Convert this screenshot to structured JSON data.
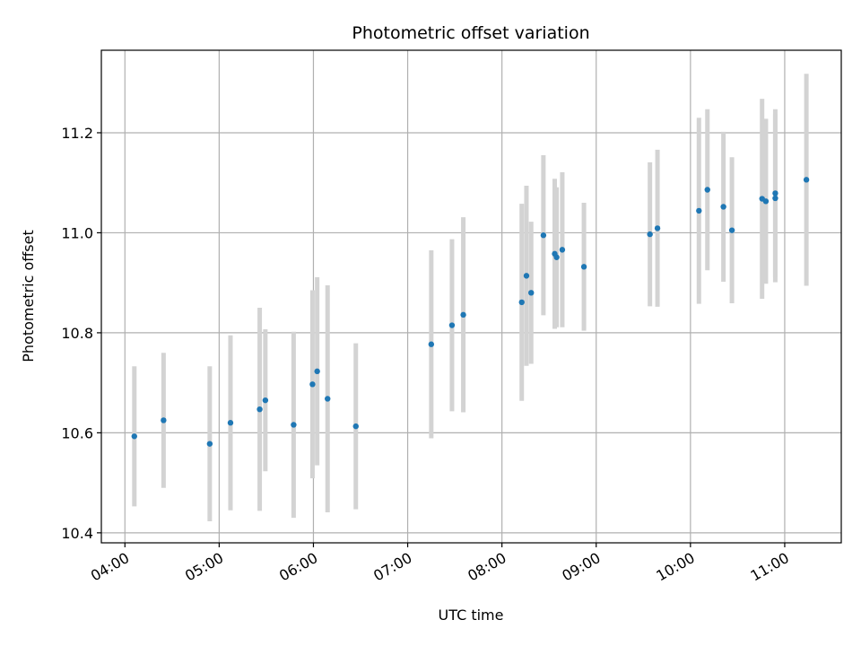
{
  "chart_data": {
    "type": "scatter",
    "title": "Photometric offset variation",
    "xlabel": "UTC time",
    "ylabel": "Photometric offset",
    "xlim_hours": [
      3.75,
      11.6
    ],
    "ylim": [
      10.38,
      11.365
    ],
    "grid": true,
    "x_ticks": [
      {
        "value": 4,
        "label": "04:00"
      },
      {
        "value": 5,
        "label": "05:00"
      },
      {
        "value": 6,
        "label": "06:00"
      },
      {
        "value": 7,
        "label": "07:00"
      },
      {
        "value": 8,
        "label": "08:00"
      },
      {
        "value": 9,
        "label": "09:00"
      },
      {
        "value": 10,
        "label": "10:00"
      },
      {
        "value": 11,
        "label": "11:00"
      }
    ],
    "y_ticks": [
      {
        "value": 10.4,
        "label": "10.4"
      },
      {
        "value": 10.6,
        "label": "10.6"
      },
      {
        "value": 10.8,
        "label": "10.8"
      },
      {
        "value": 11.0,
        "label": "11.0"
      },
      {
        "value": 11.2,
        "label": "11.2"
      }
    ],
    "colors": {
      "points": "#1f77b4",
      "errorbars": "#d3d3d3",
      "grid": "#b0b0b0"
    },
    "points": [
      {
        "time": "04:06",
        "t": 4.1,
        "y": 10.593,
        "err": 0.14
      },
      {
        "time": "04:25",
        "t": 4.41,
        "y": 10.625,
        "err": 0.135
      },
      {
        "time": "04:54",
        "t": 4.9,
        "y": 10.578,
        "err": 0.155
      },
      {
        "time": "05:07",
        "t": 5.12,
        "y": 10.62,
        "err": 0.175
      },
      {
        "time": "05:26",
        "t": 5.43,
        "y": 10.647,
        "err": 0.203
      },
      {
        "time": "05:29",
        "t": 5.49,
        "y": 10.665,
        "err": 0.142
      },
      {
        "time": "05:47",
        "t": 5.79,
        "y": 10.616,
        "err": 0.186
      },
      {
        "time": "05:59",
        "t": 5.99,
        "y": 10.697,
        "err": 0.188
      },
      {
        "time": "06:03",
        "t": 6.04,
        "y": 10.723,
        "err": 0.188
      },
      {
        "time": "06:09",
        "t": 6.15,
        "y": 10.668,
        "err": 0.227
      },
      {
        "time": "06:27",
        "t": 6.45,
        "y": 10.613,
        "err": 0.166
      },
      {
        "time": "07:15",
        "t": 7.25,
        "y": 10.777,
        "err": 0.188
      },
      {
        "time": "07:28",
        "t": 7.47,
        "y": 10.815,
        "err": 0.172
      },
      {
        "time": "07:35",
        "t": 7.59,
        "y": 10.836,
        "err": 0.195
      },
      {
        "time": "08:12",
        "t": 8.21,
        "y": 10.861,
        "err": 0.197
      },
      {
        "time": "08:16",
        "t": 8.26,
        "y": 10.914,
        "err": 0.18
      },
      {
        "time": "08:19",
        "t": 8.31,
        "y": 10.88,
        "err": 0.142
      },
      {
        "time": "08:27",
        "t": 8.44,
        "y": 10.995,
        "err": 0.16
      },
      {
        "time": "08:34",
        "t": 8.56,
        "y": 10.958,
        "err": 0.15
      },
      {
        "time": "08:35",
        "t": 8.58,
        "y": 10.951,
        "err": 0.14
      },
      {
        "time": "08:38",
        "t": 8.64,
        "y": 10.966,
        "err": 0.155
      },
      {
        "time": "08:52",
        "t": 8.87,
        "y": 10.932,
        "err": 0.128
      },
      {
        "time": "09:34",
        "t": 9.57,
        "y": 10.997,
        "err": 0.144
      },
      {
        "time": "09:39",
        "t": 9.65,
        "y": 11.009,
        "err": 0.157
      },
      {
        "time": "10:05",
        "t": 10.09,
        "y": 11.044,
        "err": 0.186
      },
      {
        "time": "10:10",
        "t": 10.18,
        "y": 11.086,
        "err": 0.161
      },
      {
        "time": "10:21",
        "t": 10.35,
        "y": 11.052,
        "err": 0.15
      },
      {
        "time": "10:26",
        "t": 10.44,
        "y": 11.005,
        "err": 0.146
      },
      {
        "time": "10:45",
        "t": 10.76,
        "y": 11.068,
        "err": 0.2
      },
      {
        "time": "10:48",
        "t": 10.8,
        "y": 11.063,
        "err": 0.165
      },
      {
        "time": "10:54",
        "t": 10.9,
        "y": 11.079,
        "err": 0.168
      },
      {
        "time": "10:54",
        "t": 10.9,
        "y": 11.069,
        "err": 0.168
      },
      {
        "time": "11:14",
        "t": 11.23,
        "y": 11.106,
        "err": 0.212
      }
    ]
  }
}
